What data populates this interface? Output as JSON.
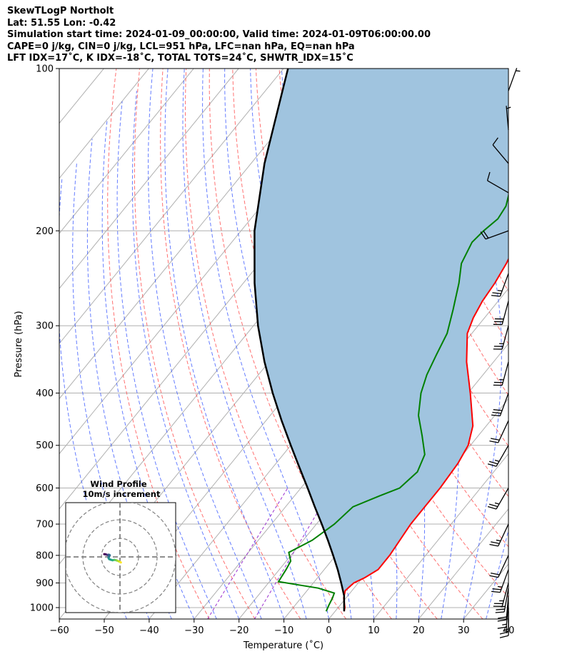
{
  "header": {
    "line1": "SkewTLogP Northolt",
    "line2": "Lat: 51.55   Lon: -0.42",
    "line3": "Simulation start time: 2024-01-09_00:00:00, Valid time: 2024-01-09T06:00:00.00",
    "line4": "CAPE=0 j/kg, CIN=0 j/kg, LCL=951 hPa, LFC=nan hPa, EQ=nan hPa",
    "line5": "LFT IDX=17$^\\circ$C, K IDX=-18$^\\circ$C, TOTAL TOTS=24$^\\circ$C, SHWTR_IDX=15$^\\circ$C",
    "line5_display": "LFT IDX=17˚C, K IDX=-18˚C, TOTAL TOTS=24˚C, SHWTR_IDX=15˚C"
  },
  "chart_data": {
    "type": "line",
    "subtype": "skew-t log-p",
    "xlabel": "Temperature (˚C)",
    "ylabel": "Pressure (hPa)",
    "xlim": [
      -60,
      40
    ],
    "ylim": [
      1050,
      100
    ],
    "yscale": "log",
    "x_ticks": [
      -60,
      -50,
      -40,
      -30,
      -20,
      -10,
      0,
      10,
      20,
      30,
      40
    ],
    "y_ticks": [
      100,
      200,
      300,
      400,
      500,
      600,
      700,
      800,
      900,
      1000
    ],
    "grid": true,
    "series": [
      {
        "kind": "temperature",
        "color": "#ff0000",
        "points": [
          [
            1016,
            2.0
          ],
          [
            1000,
            1.5
          ],
          [
            960,
            -0.5
          ],
          [
            930,
            -1.5
          ],
          [
            900,
            -1.0
          ],
          [
            880,
            0.5
          ],
          [
            850,
            2.0
          ],
          [
            800,
            2.0
          ],
          [
            700,
            1.0
          ],
          [
            650,
            1.0
          ],
          [
            600,
            1.0
          ],
          [
            540,
            0.5
          ],
          [
            500,
            -0.5
          ],
          [
            460,
            -3.0
          ],
          [
            400,
            -9.5
          ],
          [
            350,
            -16.0
          ],
          [
            310,
            -21.0
          ],
          [
            290,
            -22.5
          ],
          [
            270,
            -23.5
          ],
          [
            250,
            -24.0
          ],
          [
            230,
            -25.0
          ],
          [
            210,
            -26.5
          ],
          [
            190,
            -28.0
          ],
          [
            170,
            -31.0
          ],
          [
            150,
            -35.0
          ],
          [
            130,
            -41.0
          ],
          [
            115,
            -45.0
          ],
          [
            100,
            -48.0
          ]
        ]
      },
      {
        "kind": "dewpoint",
        "color": "#008000",
        "points": [
          [
            1016,
            -2.0
          ],
          [
            990,
            -2.5
          ],
          [
            960,
            -3.0
          ],
          [
            940,
            -3.5
          ],
          [
            920,
            -8.0
          ],
          [
            895,
            -18.0
          ],
          [
            850,
            -18.5
          ],
          [
            820,
            -19.0
          ],
          [
            790,
            -21.0
          ],
          [
            750,
            -18.0
          ],
          [
            700,
            -16.0
          ],
          [
            650,
            -15.0
          ],
          [
            620,
            -11.0
          ],
          [
            600,
            -8.0
          ],
          [
            560,
            -7.0
          ],
          [
            520,
            -8.5
          ],
          [
            480,
            -12.5
          ],
          [
            440,
            -17.0
          ],
          [
            400,
            -20.5
          ],
          [
            370,
            -22.5
          ],
          [
            340,
            -24.0
          ],
          [
            310,
            -25.5
          ],
          [
            280,
            -28.5
          ],
          [
            250,
            -32.0
          ],
          [
            230,
            -35.0
          ],
          [
            210,
            -36.5
          ],
          [
            200,
            -36.0
          ],
          [
            190,
            -35.0
          ],
          [
            180,
            -35.5
          ],
          [
            160,
            -39.0
          ],
          [
            140,
            -44.0
          ],
          [
            120,
            -51.0
          ],
          [
            100,
            -58.5
          ]
        ]
      },
      {
        "kind": "parcel",
        "color": "#000000",
        "points": [
          [
            1016,
            2.0
          ],
          [
            951,
            -0.8
          ],
          [
            900,
            -3.8
          ],
          [
            850,
            -7.0
          ],
          [
            800,
            -10.6
          ],
          [
            750,
            -14.5
          ],
          [
            700,
            -18.8
          ],
          [
            650,
            -23.5
          ],
          [
            600,
            -28.5
          ],
          [
            550,
            -34.0
          ],
          [
            500,
            -40.0
          ],
          [
            450,
            -46.5
          ],
          [
            400,
            -53.5
          ],
          [
            350,
            -61.0
          ],
          [
            300,
            -69.0
          ],
          [
            250,
            -77.5
          ],
          [
            200,
            -87.0
          ],
          [
            150,
            -97.0
          ],
          [
            100,
            -109.0
          ]
        ]
      }
    ],
    "shaded_region": {
      "between": [
        "temperature",
        "parcel"
      ],
      "color": "#a0c4df"
    },
    "wind_barbs": [
      {
        "p": 1016,
        "speed_kt": 10,
        "dir": 180
      },
      {
        "p": 1000,
        "speed_kt": 15,
        "dir": 180
      },
      {
        "p": 980,
        "speed_kt": 15,
        "dir": 185
      },
      {
        "p": 950,
        "speed_kt": 20,
        "dir": 185
      },
      {
        "p": 920,
        "speed_kt": 25,
        "dir": 190
      },
      {
        "p": 900,
        "speed_kt": 25,
        "dir": 195
      },
      {
        "p": 850,
        "speed_kt": 25,
        "dir": 200
      },
      {
        "p": 800,
        "speed_kt": 20,
        "dir": 205
      },
      {
        "p": 700,
        "speed_kt": 25,
        "dir": 205
      },
      {
        "p": 600,
        "speed_kt": 25,
        "dir": 210
      },
      {
        "p": 500,
        "speed_kt": 25,
        "dir": 210
      },
      {
        "p": 450,
        "speed_kt": 20,
        "dir": 205
      },
      {
        "p": 400,
        "speed_kt": 30,
        "dir": 200
      },
      {
        "p": 350,
        "speed_kt": 25,
        "dir": 195
      },
      {
        "p": 300,
        "speed_kt": 25,
        "dir": 195
      },
      {
        "p": 270,
        "speed_kt": 30,
        "dir": 195
      },
      {
        "p": 240,
        "speed_kt": 25,
        "dir": 200
      },
      {
        "p": 200,
        "speed_kt": 20,
        "dir": 250
      },
      {
        "p": 170,
        "speed_kt": 10,
        "dir": 300
      },
      {
        "p": 150,
        "speed_kt": 10,
        "dir": 320
      },
      {
        "p": 130,
        "speed_kt": 5,
        "dir": 355
      },
      {
        "p": 110,
        "speed_kt": 5,
        "dir": 20
      }
    ],
    "hodograph": {
      "title": "Wind Profile",
      "subtitle": "10m/s increment",
      "ring_increment_ms": 10,
      "points_uv": [
        [
          -8.5,
          1.5
        ],
        [
          -7.8,
          1.4
        ],
        [
          -7.2,
          1.2
        ],
        [
          -6.5,
          1.0
        ],
        [
          -6.0,
          1.2
        ],
        [
          -5.5,
          0.9
        ],
        [
          -6.2,
          -0.5
        ],
        [
          -5.8,
          -1.2
        ],
        [
          -5.0,
          -1.5
        ],
        [
          -4.0,
          -1.8
        ],
        [
          -3.0,
          -1.6
        ],
        [
          -2.0,
          -1.8
        ],
        [
          -1.0,
          -2.2
        ],
        [
          0.2,
          -2.8
        ],
        [
          0.5,
          -3.0
        ]
      ]
    }
  }
}
